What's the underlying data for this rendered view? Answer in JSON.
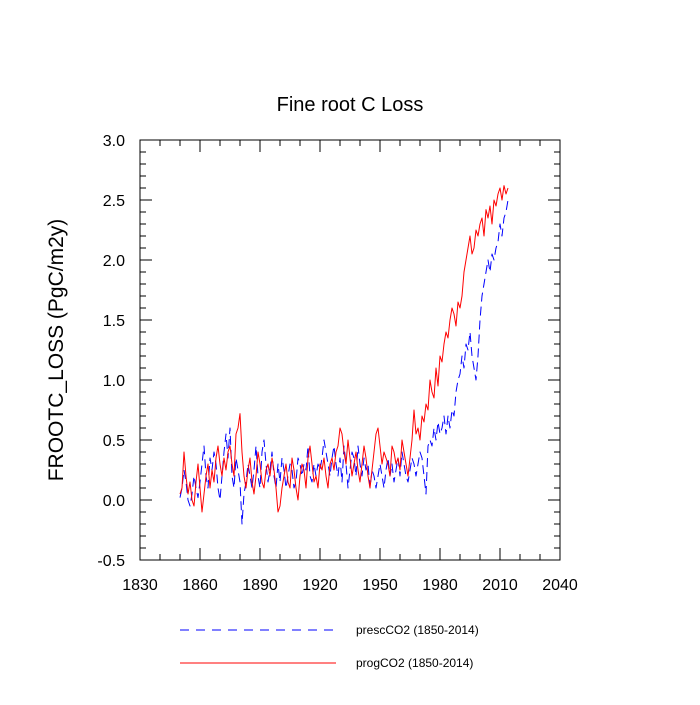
{
  "chart_data": {
    "type": "line",
    "title": "Fine root C Loss",
    "xlabel": "",
    "ylabel": "FROOTC_LOSS  (PgC/m2y)",
    "xlim": [
      1830,
      2040
    ],
    "ylim": [
      -0.5,
      3.0
    ],
    "xticks": [
      1830,
      1860,
      1890,
      1920,
      1950,
      1980,
      2010,
      2040
    ],
    "yticks": [
      -0.5,
      0.0,
      0.5,
      1.0,
      1.5,
      2.0,
      2.5,
      3.0
    ],
    "ytick_labels": [
      "-0.5",
      "0.0",
      "0.5",
      "1.0",
      "1.5",
      "2.0",
      "2.5",
      "3.0"
    ],
    "legend_position": "bottom",
    "series": [
      {
        "name": "prescCO2 (1850-2014)",
        "color": "#0000ff",
        "style": "dashed",
        "x": [
          1850,
          1851,
          1852,
          1853,
          1854,
          1855,
          1856,
          1857,
          1858,
          1859,
          1860,
          1861,
          1862,
          1863,
          1864,
          1865,
          1866,
          1867,
          1868,
          1869,
          1870,
          1871,
          1872,
          1873,
          1874,
          1875,
          1876,
          1877,
          1878,
          1879,
          1880,
          1881,
          1882,
          1883,
          1884,
          1885,
          1886,
          1887,
          1888,
          1889,
          1890,
          1891,
          1892,
          1893,
          1894,
          1895,
          1896,
          1897,
          1898,
          1899,
          1900,
          1901,
          1902,
          1903,
          1904,
          1905,
          1906,
          1907,
          1908,
          1909,
          1910,
          1911,
          1912,
          1913,
          1914,
          1915,
          1916,
          1917,
          1918,
          1919,
          1920,
          1921,
          1922,
          1923,
          1924,
          1925,
          1926,
          1927,
          1928,
          1929,
          1930,
          1931,
          1932,
          1933,
          1934,
          1935,
          1936,
          1937,
          1938,
          1939,
          1940,
          1941,
          1942,
          1943,
          1944,
          1945,
          1946,
          1947,
          1948,
          1949,
          1950,
          1951,
          1952,
          1953,
          1954,
          1955,
          1956,
          1957,
          1958,
          1959,
          1960,
          1961,
          1962,
          1963,
          1964,
          1965,
          1966,
          1967,
          1968,
          1969,
          1970,
          1971,
          1972,
          1973,
          1974,
          1975,
          1976,
          1977,
          1978,
          1979,
          1980,
          1981,
          1982,
          1983,
          1984,
          1985,
          1986,
          1987,
          1988,
          1989,
          1990,
          1991,
          1992,
          1993,
          1994,
          1995,
          1996,
          1997,
          1998,
          1999,
          2000,
          2001,
          2002,
          2003,
          2004,
          2005,
          2006,
          2007,
          2008,
          2009,
          2010,
          2011,
          2012,
          2013,
          2014
        ],
        "values": [
          0.02,
          0.1,
          0.25,
          0.15,
          0.0,
          -0.05,
          0.05,
          0.2,
          0.1,
          0.02,
          0.15,
          0.3,
          0.45,
          0.2,
          0.1,
          0.35,
          0.25,
          0.4,
          0.3,
          0.1,
          0.0,
          0.2,
          0.4,
          0.55,
          0.35,
          0.6,
          0.2,
          0.1,
          0.35,
          0.25,
          0.15,
          -0.2,
          0.05,
          0.15,
          0.3,
          0.2,
          0.1,
          0.25,
          0.45,
          0.2,
          0.1,
          0.4,
          0.5,
          0.3,
          0.15,
          0.25,
          0.4,
          0.2,
          0.1,
          0.3,
          0.15,
          0.35,
          0.25,
          0.1,
          0.2,
          0.3,
          0.25,
          0.1,
          0.15,
          0.35,
          0.3,
          0.2,
          0.3,
          0.25,
          0.45,
          0.2,
          0.15,
          0.3,
          0.2,
          0.3,
          0.25,
          0.35,
          0.5,
          0.4,
          0.3,
          0.2,
          0.35,
          0.45,
          0.3,
          0.2,
          0.35,
          0.15,
          0.45,
          0.3,
          0.1,
          0.25,
          0.4,
          0.35,
          0.2,
          0.45,
          0.3,
          0.2,
          0.35,
          0.25,
          0.3,
          0.1,
          0.25,
          0.2,
          0.1,
          0.2,
          0.3,
          0.2,
          0.1,
          0.25,
          0.35,
          0.2,
          0.3,
          0.15,
          0.25,
          0.35,
          0.2,
          0.4,
          0.3,
          0.2,
          0.15,
          0.25,
          0.35,
          0.3,
          0.2,
          0.3,
          0.4,
          0.35,
          0.2,
          0.05,
          0.45,
          0.5,
          0.45,
          0.6,
          0.5,
          0.65,
          0.55,
          0.6,
          0.7,
          0.55,
          0.7,
          0.6,
          0.75,
          0.7,
          0.9,
          1.0,
          1.05,
          1.2,
          1.1,
          1.3,
          1.25,
          1.4,
          1.2,
          1.1,
          1.0,
          1.2,
          1.5,
          1.7,
          1.8,
          1.9,
          2.0,
          1.9,
          2.05,
          2.0,
          2.1,
          2.15,
          2.3,
          2.2,
          2.35,
          2.4,
          2.5
        ]
      },
      {
        "name": "progCO2 (1850-2014)",
        "color": "#ff0000",
        "style": "solid",
        "x": [
          1850,
          1851,
          1852,
          1853,
          1854,
          1855,
          1856,
          1857,
          1858,
          1859,
          1860,
          1861,
          1862,
          1863,
          1864,
          1865,
          1866,
          1867,
          1868,
          1869,
          1870,
          1871,
          1872,
          1873,
          1874,
          1875,
          1876,
          1877,
          1878,
          1879,
          1880,
          1881,
          1882,
          1883,
          1884,
          1885,
          1886,
          1887,
          1888,
          1889,
          1890,
          1891,
          1892,
          1893,
          1894,
          1895,
          1896,
          1897,
          1898,
          1899,
          1900,
          1901,
          1902,
          1903,
          1904,
          1905,
          1906,
          1907,
          1908,
          1909,
          1910,
          1911,
          1912,
          1913,
          1914,
          1915,
          1916,
          1917,
          1918,
          1919,
          1920,
          1921,
          1922,
          1923,
          1924,
          1925,
          1926,
          1927,
          1928,
          1929,
          1930,
          1931,
          1932,
          1933,
          1934,
          1935,
          1936,
          1937,
          1938,
          1939,
          1940,
          1941,
          1942,
          1943,
          1944,
          1945,
          1946,
          1947,
          1948,
          1949,
          1950,
          1951,
          1952,
          1953,
          1954,
          1955,
          1956,
          1957,
          1958,
          1959,
          1960,
          1961,
          1962,
          1963,
          1964,
          1965,
          1966,
          1967,
          1968,
          1969,
          1970,
          1971,
          1972,
          1973,
          1974,
          1975,
          1976,
          1977,
          1978,
          1979,
          1980,
          1981,
          1982,
          1983,
          1984,
          1985,
          1986,
          1987,
          1988,
          1989,
          1990,
          1991,
          1992,
          1993,
          1994,
          1995,
          1996,
          1997,
          1998,
          1999,
          2000,
          2001,
          2002,
          2003,
          2004,
          2005,
          2006,
          2007,
          2008,
          2009,
          2010,
          2011,
          2012,
          2013,
          2014
        ],
        "values": [
          0.05,
          0.1,
          0.4,
          0.2,
          0.05,
          0.15,
          0.0,
          -0.05,
          0.15,
          0.3,
          0.1,
          -0.1,
          0.05,
          0.2,
          0.3,
          0.1,
          0.25,
          0.15,
          0.35,
          0.45,
          0.3,
          0.2,
          0.35,
          0.25,
          0.4,
          0.45,
          0.3,
          0.2,
          0.55,
          0.6,
          0.72,
          0.4,
          0.2,
          0.1,
          0.25,
          0.35,
          0.15,
          0.05,
          0.2,
          0.4,
          0.3,
          0.15,
          0.1,
          0.25,
          0.3,
          0.2,
          0.35,
          0.25,
          0.1,
          -0.1,
          -0.05,
          0.1,
          0.2,
          0.3,
          0.15,
          0.1,
          0.35,
          0.25,
          0.1,
          0.0,
          0.2,
          0.3,
          0.25,
          0.1,
          0.35,
          0.45,
          0.3,
          0.15,
          0.2,
          0.1,
          0.3,
          0.25,
          0.35,
          0.2,
          0.1,
          0.3,
          0.35,
          0.25,
          0.4,
          0.45,
          0.6,
          0.55,
          0.4,
          0.3,
          0.5,
          0.35,
          0.2,
          0.3,
          0.4,
          0.25,
          0.15,
          0.3,
          0.45,
          0.35,
          0.2,
          0.1,
          0.25,
          0.4,
          0.55,
          0.6,
          0.45,
          0.3,
          0.4,
          0.35,
          0.3,
          0.2,
          0.45,
          0.4,
          0.3,
          0.35,
          0.25,
          0.5,
          0.4,
          0.3,
          0.2,
          0.35,
          0.5,
          0.75,
          0.55,
          0.6,
          0.5,
          0.7,
          0.65,
          0.8,
          0.75,
          1.0,
          0.9,
          0.85,
          1.1,
          0.95,
          1.2,
          1.15,
          1.3,
          1.4,
          1.35,
          1.5,
          1.6,
          1.55,
          1.45,
          1.65,
          1.6,
          1.7,
          1.9,
          2.0,
          2.1,
          2.2,
          2.05,
          2.1,
          2.25,
          2.2,
          2.3,
          2.35,
          2.2,
          2.42,
          2.35,
          2.45,
          2.3,
          2.5,
          2.45,
          2.55,
          2.6,
          2.5,
          2.62,
          2.55,
          2.6
        ]
      }
    ]
  }
}
